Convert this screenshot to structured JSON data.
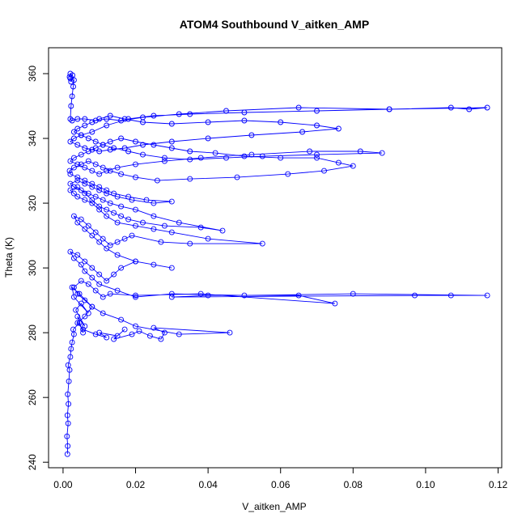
{
  "chart_data": {
    "type": "scatter",
    "title": "ATOM4 Southbound V_aitken_AMP",
    "xlabel": "V_aitken_AMP",
    "ylabel": "Theta (K)",
    "xlim": [
      -0.004,
      0.121
    ],
    "ylim": [
      238.3,
      368.0
    ],
    "xticks": [
      0.0,
      0.02,
      0.04,
      0.06,
      0.08,
      0.1,
      0.12
    ],
    "xtick_labels": [
      "0.00",
      "0.02",
      "0.04",
      "0.06",
      "0.08",
      "0.10",
      "0.12"
    ],
    "yticks": [
      240,
      260,
      280,
      300,
      320,
      340,
      360
    ],
    "ytick_labels": [
      "240",
      "260",
      "280",
      "300",
      "320",
      "340",
      "360"
    ],
    "grid": false,
    "marker": "open-circle",
    "connected": true,
    "color": "#0000ff",
    "series": [
      {
        "values_x": [
          0.0012,
          0.0013,
          0.0011,
          0.0014,
          0.0012,
          0.0015,
          0.0013,
          0.0016,
          0.0018,
          0.0014,
          0.002,
          0.0022,
          0.0025,
          0.003,
          0.0028,
          0.0045,
          0.0055,
          0.004,
          0.006,
          0.0035,
          0.005,
          0.007,
          0.003,
          0.0025,
          0.0045,
          0.008,
          0.006,
          0.004,
          0.0055,
          0.009,
          0.012,
          0.01,
          0.015,
          0.017,
          0.014,
          0.019,
          0.021,
          0.024,
          0.027,
          0.028,
          0.025,
          0.046,
          0.032,
          0.02,
          0.016,
          0.011,
          0.008,
          0.006,
          0.004,
          0.003,
          0.005,
          0.007,
          0.009,
          0.011,
          0.013,
          0.02,
          0.038,
          0.075,
          0.065,
          0.04,
          0.03,
          0.097,
          0.107,
          0.117,
          0.08,
          0.05,
          0.03,
          0.02,
          0.015,
          0.01,
          0.008,
          0.006,
          0.005,
          0.003,
          0.002,
          0.004,
          0.006,
          0.008,
          0.01,
          0.012,
          0.014,
          0.016,
          0.02,
          0.025,
          0.03,
          0.02,
          0.015,
          0.012,
          0.01,
          0.008,
          0.006,
          0.004,
          0.003,
          0.005,
          0.007,
          0.009,
          0.011,
          0.013,
          0.015,
          0.017,
          0.019,
          0.027,
          0.035,
          0.055,
          0.04,
          0.03,
          0.025,
          0.02,
          0.015,
          0.012,
          0.01,
          0.008,
          0.006,
          0.004,
          0.003,
          0.002,
          0.004,
          0.006,
          0.008,
          0.01,
          0.012,
          0.014,
          0.016,
          0.018,
          0.022,
          0.028,
          0.038,
          0.044,
          0.032,
          0.025,
          0.02,
          0.016,
          0.013,
          0.011,
          0.009,
          0.007,
          0.005,
          0.003,
          0.002,
          0.004,
          0.006,
          0.008,
          0.01,
          0.012,
          0.015,
          0.019,
          0.025,
          0.03,
          0.023,
          0.018,
          0.014,
          0.012,
          0.01,
          0.008,
          0.006,
          0.004,
          0.002,
          0.0018,
          0.003,
          0.005,
          0.007,
          0.009,
          0.011,
          0.013,
          0.016,
          0.02,
          0.026,
          0.035,
          0.048,
          0.062,
          0.072,
          0.08,
          0.076,
          0.07,
          0.06,
          0.05,
          0.042,
          0.035,
          0.03,
          0.025,
          0.02,
          0.016,
          0.013,
          0.011,
          0.009,
          0.007,
          0.005,
          0.003,
          0.002,
          0.004,
          0.006,
          0.008,
          0.01,
          0.012,
          0.015,
          0.02,
          0.028,
          0.038,
          0.052,
          0.068,
          0.082,
          0.088,
          0.07,
          0.055,
          0.045,
          0.035,
          0.028,
          0.022,
          0.018,
          0.014,
          0.011,
          0.009,
          0.007,
          0.005,
          0.003,
          0.002,
          0.004,
          0.006,
          0.008,
          0.01,
          0.013,
          0.017,
          0.022,
          0.03,
          0.04,
          0.052,
          0.066,
          0.076,
          0.07,
          0.06,
          0.05,
          0.04,
          0.03,
          0.022,
          0.017,
          0.013,
          0.01,
          0.008,
          0.006,
          0.004,
          0.003,
          0.005,
          0.008,
          0.012,
          0.018,
          0.025,
          0.035,
          0.05,
          0.07,
          0.09,
          0.107,
          0.112,
          0.117,
          0.09,
          0.065,
          0.045,
          0.032,
          0.022,
          0.016,
          0.012,
          0.009,
          0.006,
          0.004,
          0.0025,
          0.002,
          0.0022,
          0.0025,
          0.0028,
          0.003,
          0.0026,
          0.002,
          0.0018,
          0.002,
          0.0022
        ],
        "values_y": [
          242.5,
          245.0,
          248.0,
          252.0,
          254.5,
          258.0,
          261.0,
          265.0,
          268.5,
          270.0,
          272.5,
          275.0,
          277.0,
          279.5,
          281.0,
          283.0,
          280.0,
          285.0,
          282.0,
          287.0,
          289.0,
          286.0,
          291.0,
          294.0,
          292.0,
          288.0,
          285.0,
          283.0,
          281.0,
          279.5,
          278.5,
          280.0,
          279.0,
          281.0,
          278.0,
          279.5,
          280.5,
          279.0,
          278.0,
          280.0,
          281.5,
          280.0,
          279.5,
          282.0,
          284.0,
          286.0,
          288.0,
          290.0,
          292.0,
          294.0,
          296.0,
          295.0,
          293.0,
          291.0,
          292.0,
          291.5,
          292.0,
          289.0,
          291.5,
          291.5,
          291.0,
          291.5,
          291.5,
          291.5,
          292.0,
          291.5,
          292.0,
          291.0,
          293.0,
          295.0,
          297.0,
          299.0,
          301.0,
          303.0,
          305.0,
          304.0,
          302.0,
          300.0,
          298.0,
          296.0,
          298.0,
          300.0,
          302.0,
          301.0,
          300.0,
          302.0,
          304.0,
          306.0,
          308.0,
          310.0,
          312.0,
          314.0,
          316.0,
          315.0,
          313.0,
          311.0,
          309.0,
          307.0,
          308.0,
          309.0,
          310.0,
          308.0,
          307.5,
          307.5,
          309.0,
          311.0,
          312.0,
          313.0,
          314.0,
          316.0,
          318.0,
          320.0,
          321.0,
          322.0,
          323.0,
          324.0,
          325.0,
          323.0,
          321.0,
          319.0,
          318.0,
          317.0,
          316.0,
          315.0,
          314.0,
          313.0,
          312.5,
          311.5,
          314.0,
          316.0,
          318.0,
          319.0,
          320.0,
          321.0,
          322.0,
          323.0,
          324.0,
          325.0,
          326.0,
          327.0,
          326.0,
          325.0,
          324.0,
          323.0,
          322.0,
          321.0,
          320.0,
          320.5,
          321.0,
          322.0,
          323.0,
          324.0,
          325.0,
          326.0,
          327.0,
          328.0,
          329.0,
          330.0,
          331.0,
          332.0,
          333.0,
          332.0,
          331.0,
          330.0,
          329.0,
          328.0,
          327.0,
          327.5,
          328.0,
          329.0,
          330.0,
          331.5,
          332.5,
          334.0,
          334.0,
          334.5,
          335.5,
          336.0,
          337.0,
          338.0,
          339.0,
          340.0,
          339.0,
          338.0,
          337.0,
          336.0,
          335.0,
          334.0,
          333.0,
          332.0,
          331.0,
          330.0,
          329.0,
          330.0,
          331.0,
          332.0,
          333.0,
          334.0,
          335.0,
          336.0,
          336.0,
          335.5,
          335.0,
          334.5,
          334.0,
          333.5,
          334.0,
          335.0,
          336.0,
          337.0,
          338.0,
          339.0,
          340.0,
          341.0,
          340.0,
          339.0,
          338.0,
          337.0,
          336.5,
          336.0,
          336.5,
          337.0,
          338.0,
          339.0,
          340.0,
          341.0,
          342.0,
          343.0,
          344.0,
          345.0,
          345.5,
          345.0,
          344.5,
          345.0,
          346.0,
          347.0,
          346.0,
          345.0,
          344.0,
          343.0,
          342.0,
          341.0,
          342.0,
          344.0,
          346.0,
          347.0,
          347.5,
          348.0,
          348.5,
          349.0,
          349.5,
          349.0,
          349.5,
          349.0,
          349.5,
          348.5,
          347.5,
          346.5,
          345.5,
          346.0,
          345.5,
          346.0,
          346.0,
          345.5,
          346.0,
          350.0,
          353.0,
          356.0,
          358.0,
          359.5,
          360.0,
          359.0,
          358.5,
          357.5
        ]
      }
    ]
  }
}
